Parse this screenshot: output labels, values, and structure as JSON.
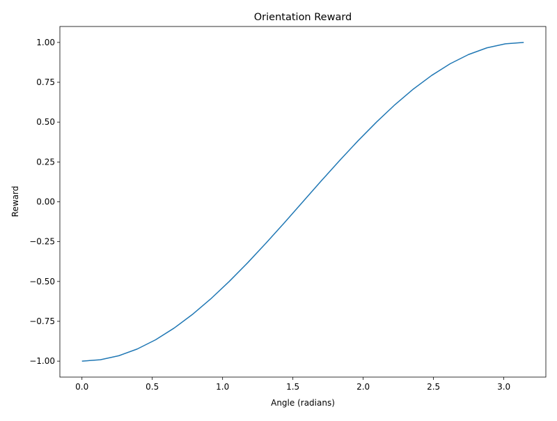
{
  "chart_data": {
    "type": "line",
    "title": "Orientation Reward",
    "xlabel": "Angle (radians)",
    "ylabel": "Reward",
    "xlim": [
      -0.157,
      3.299
    ],
    "ylim": [
      -1.1,
      1.1
    ],
    "x_ticks": [
      0.0,
      0.5,
      1.0,
      1.5,
      2.0,
      2.5,
      3.0
    ],
    "x_tick_labels": [
      "0.0",
      "0.5",
      "1.0",
      "1.5",
      "2.0",
      "2.5",
      "3.0"
    ],
    "y_ticks": [
      -1.0,
      -0.75,
      -0.5,
      -0.25,
      0.0,
      0.25,
      0.5,
      0.75,
      1.0
    ],
    "y_tick_labels": [
      "−1.00",
      "−0.75",
      "−0.50",
      "−0.25",
      "0.00",
      "0.25",
      "0.50",
      "0.75",
      "1.00"
    ],
    "grid": false,
    "series": [
      {
        "color": "#1f77b4",
        "x": [
          0.0,
          0.1309,
          0.2618,
          0.3927,
          0.5236,
          0.6545,
          0.7854,
          0.9163,
          1.0472,
          1.1781,
          1.309,
          1.4399,
          1.5708,
          1.7017,
          1.8326,
          1.9635,
          2.0944,
          2.2253,
          2.3562,
          2.4871,
          2.618,
          2.7489,
          2.8798,
          3.0107,
          3.1416
        ],
        "y": [
          -1.0,
          -0.991,
          -0.966,
          -0.924,
          -0.866,
          -0.793,
          -0.707,
          -0.609,
          -0.5,
          -0.383,
          -0.259,
          -0.131,
          0.0,
          0.131,
          0.259,
          0.383,
          0.5,
          0.609,
          0.707,
          0.793,
          0.866,
          0.924,
          0.966,
          0.991,
          1.0
        ]
      }
    ]
  }
}
